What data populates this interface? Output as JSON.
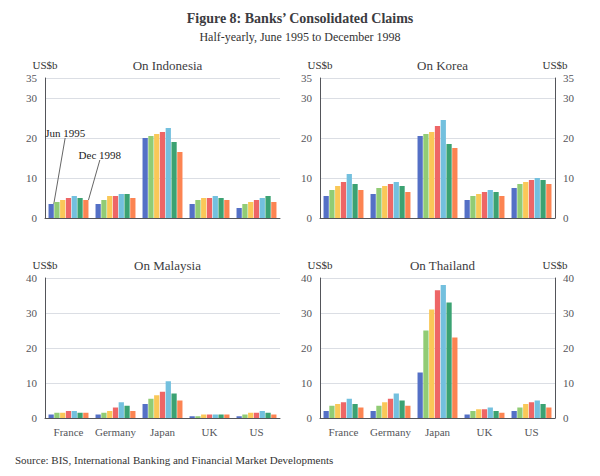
{
  "title": "Figure 8: Banks’ Consolidated Claims",
  "subtitle": "Half-yearly, June 1995 to December 1998",
  "source": "Source: BIS, International Banking and Financial Market Developments",
  "chart_data": [
    {
      "type": "bar",
      "title": "On Indonesia",
      "ylabel": "US$b",
      "categories": [
        "France",
        "Germany",
        "Japan",
        "UK",
        "US"
      ],
      "series": [
        {
          "color": "#5470c6",
          "values": [
            3.5,
            3.5,
            20.0,
            3.5,
            2.5
          ]
        },
        {
          "color": "#91cc75",
          "values": [
            4.0,
            4.5,
            20.5,
            4.5,
            3.5
          ]
        },
        {
          "color": "#fac858",
          "values": [
            4.5,
            5.5,
            21.0,
            5.0,
            4.0
          ]
        },
        {
          "color": "#ee6666",
          "values": [
            5.0,
            5.5,
            21.5,
            5.0,
            4.5
          ]
        },
        {
          "color": "#73c0de",
          "values": [
            5.5,
            6.0,
            22.5,
            5.5,
            5.0
          ]
        },
        {
          "color": "#3ba272",
          "values": [
            5.0,
            6.0,
            19.0,
            5.0,
            5.5
          ]
        },
        {
          "color": "#fc8452",
          "values": [
            4.5,
            5.0,
            16.5,
            4.5,
            4.0
          ]
        }
      ],
      "annotations": [
        {
          "text": "Jun 1995",
          "category": "France",
          "series": 0
        },
        {
          "text": "Dec 1998",
          "category": "France",
          "series": 6
        }
      ],
      "ylim": [
        0,
        35
      ],
      "yticks": [
        0,
        10,
        20,
        30
      ],
      "grid": true,
      "tick_labels": "y"
    },
    {
      "type": "bar",
      "title": "On Korea",
      "ylabel": "US$b",
      "y2label": "US$b",
      "categories": [
        "France",
        "Germany",
        "Japan",
        "UK",
        "US"
      ],
      "series": [
        {
          "color": "#5470c6",
          "values": [
            5.5,
            6.0,
            20.5,
            4.5,
            7.5
          ]
        },
        {
          "color": "#91cc75",
          "values": [
            7.0,
            7.5,
            21.0,
            5.5,
            8.5
          ]
        },
        {
          "color": "#fac858",
          "values": [
            8.0,
            8.0,
            21.5,
            6.0,
            9.0
          ]
        },
        {
          "color": "#ee6666",
          "values": [
            9.0,
            8.5,
            23.0,
            6.5,
            9.5
          ]
        },
        {
          "color": "#73c0de",
          "values": [
            11.0,
            9.0,
            24.5,
            7.0,
            10.0
          ]
        },
        {
          "color": "#3ba272",
          "values": [
            8.5,
            8.0,
            18.5,
            6.5,
            9.5
          ]
        },
        {
          "color": "#fc8452",
          "values": [
            7.0,
            6.5,
            17.5,
            5.5,
            8.5
          ]
        }
      ],
      "ylim": [
        0,
        35
      ],
      "yticks": [
        0,
        10,
        20,
        30
      ],
      "y2lim": [
        0,
        35
      ],
      "y2ticks": [
        0,
        10,
        20,
        30
      ],
      "grid": true,
      "tick_labels": "y"
    },
    {
      "type": "bar",
      "title": "On Malaysia",
      "ylabel": "US$b",
      "categories": [
        "France",
        "Germany",
        "Japan",
        "UK",
        "US"
      ],
      "series": [
        {
          "color": "#5470c6",
          "values": [
            1.0,
            1.0,
            4.0,
            0.5,
            0.5
          ]
        },
        {
          "color": "#91cc75",
          "values": [
            1.5,
            1.5,
            5.5,
            0.5,
            1.0
          ]
        },
        {
          "color": "#fac858",
          "values": [
            1.5,
            2.0,
            6.5,
            1.0,
            1.5
          ]
        },
        {
          "color": "#ee6666",
          "values": [
            2.0,
            3.0,
            7.5,
            1.0,
            1.5
          ]
        },
        {
          "color": "#73c0de",
          "values": [
            2.0,
            4.5,
            10.5,
            1.0,
            2.0
          ]
        },
        {
          "color": "#3ba272",
          "values": [
            1.5,
            3.5,
            7.0,
            1.0,
            1.5
          ]
        },
        {
          "color": "#fc8452",
          "values": [
            1.5,
            2.0,
            5.0,
            1.0,
            1.0
          ]
        }
      ],
      "ylim": [
        0,
        40
      ],
      "yticks": [
        0,
        10,
        20,
        30,
        40
      ],
      "grid": true
    },
    {
      "type": "bar",
      "title": "On Thailand",
      "ylabel": "US$b",
      "y2label": "US$b",
      "categories": [
        "France",
        "Germany",
        "Japan",
        "UK",
        "US"
      ],
      "series": [
        {
          "color": "#5470c6",
          "values": [
            2.0,
            2.0,
            13.0,
            1.0,
            2.0
          ]
        },
        {
          "color": "#91cc75",
          "values": [
            3.5,
            3.5,
            25.0,
            2.0,
            3.0
          ]
        },
        {
          "color": "#fac858",
          "values": [
            4.0,
            4.5,
            31.0,
            2.5,
            4.0
          ]
        },
        {
          "color": "#ee6666",
          "values": [
            4.5,
            5.5,
            36.5,
            2.5,
            4.5
          ]
        },
        {
          "color": "#73c0de",
          "values": [
            5.5,
            7.0,
            38.0,
            3.0,
            5.0
          ]
        },
        {
          "color": "#3ba272",
          "values": [
            4.0,
            5.0,
            33.0,
            2.0,
            4.0
          ]
        },
        {
          "color": "#fc8452",
          "values": [
            3.0,
            3.5,
            23.0,
            1.5,
            3.0
          ]
        }
      ],
      "ylim": [
        0,
        40
      ],
      "yticks": [
        0,
        10,
        20,
        30,
        40
      ],
      "y2lim": [
        0,
        40
      ],
      "y2ticks": [
        0,
        10,
        20,
        30,
        40
      ],
      "grid": true
    }
  ]
}
